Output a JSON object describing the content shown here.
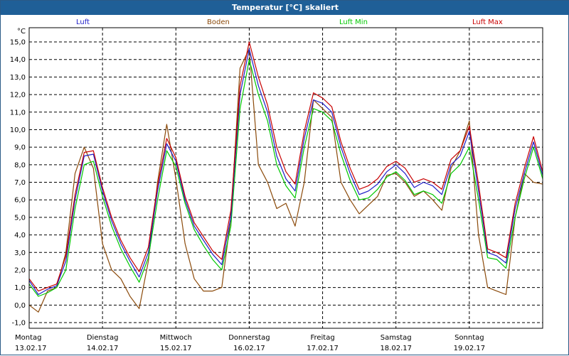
{
  "title": "Temperatur [°C] skaliert",
  "legend": [
    {
      "name": "Luft",
      "color": "#1e1ec8"
    },
    {
      "name": "Boden",
      "color": "#8b4a0a"
    },
    {
      "name": "Luft Min",
      "color": "#00c800"
    },
    {
      "name": "Luft Max",
      "color": "#c80000"
    }
  ],
  "chart_data": {
    "type": "line",
    "title": "Temperatur [°C] skaliert",
    "ylabel": "°C",
    "ylim": [
      -1.0,
      15.0
    ],
    "yticks": [
      "-1,0",
      "0,0",
      "1,0",
      "2,0",
      "3,0",
      "4,0",
      "5,0",
      "6,0",
      "7,0",
      "8,0",
      "9,0",
      "10,0",
      "11,0",
      "12,0",
      "13,0",
      "14,0",
      "15,0"
    ],
    "grid": true,
    "days": [
      {
        "name": "Montag",
        "date": "13.02.17"
      },
      {
        "name": "Dienstag",
        "date": "14.02.17"
      },
      {
        "name": "Mittwoch",
        "date": "15.02.17"
      },
      {
        "name": "Donnerstag",
        "date": "16.02.17"
      },
      {
        "name": "Freitag",
        "date": "17.02.17"
      },
      {
        "name": "Samstag",
        "date": "18.02.17"
      },
      {
        "name": "Sonntag",
        "date": "19.02.17"
      }
    ],
    "x": [
      0,
      3,
      6,
      9,
      12,
      15,
      18,
      21,
      24,
      27,
      30,
      33,
      36,
      39,
      42,
      45,
      48,
      51,
      54,
      57,
      60,
      63,
      66,
      69,
      72,
      75,
      78,
      81,
      84,
      87,
      90,
      93,
      96,
      99,
      102,
      105,
      108,
      111,
      114,
      117,
      120,
      123,
      126,
      129,
      132,
      135,
      138,
      141,
      144,
      147,
      150,
      153,
      156,
      159,
      162,
      165,
      168
    ],
    "series": [
      {
        "name": "Luft",
        "color": "#1e1ec8",
        "values": [
          1.4,
          0.6,
          0.9,
          1.1,
          2.5,
          6.0,
          8.5,
          8.6,
          6.5,
          4.8,
          3.5,
          2.5,
          1.6,
          3.0,
          6.5,
          9.2,
          8.2,
          6.0,
          4.5,
          3.7,
          2.9,
          2.3,
          5.0,
          12.0,
          14.6,
          12.5,
          11.0,
          8.5,
          7.2,
          6.5,
          9.5,
          11.7,
          11.5,
          11.0,
          9.0,
          7.5,
          6.3,
          6.5,
          6.9,
          7.6,
          8.0,
          7.5,
          6.7,
          7.0,
          6.8,
          6.3,
          8.0,
          8.5,
          9.9,
          6.5,
          3.0,
          2.8,
          2.4,
          5.5,
          7.5,
          9.3,
          7.4
        ]
      },
      {
        "name": "Boden",
        "color": "#8b4a0a",
        "values": [
          0.0,
          -0.4,
          0.8,
          1.0,
          3.0,
          7.5,
          9.0,
          7.8,
          3.5,
          2.0,
          1.5,
          0.5,
          -0.2,
          2.5,
          7.0,
          10.3,
          7.2,
          3.5,
          1.5,
          0.8,
          0.8,
          1.0,
          5.0,
          13.5,
          14.6,
          8.0,
          7.0,
          5.5,
          5.8,
          4.5,
          7.0,
          11.7,
          11.2,
          10.7,
          7.0,
          6.0,
          5.2,
          5.7,
          6.2,
          7.4,
          7.5,
          7.0,
          6.2,
          6.5,
          6.0,
          5.4,
          7.8,
          8.8,
          10.5,
          4.0,
          1.0,
          0.8,
          0.6,
          5.0,
          7.5,
          7.0,
          6.9
        ]
      },
      {
        "name": "Luft Min",
        "color": "#00c800",
        "values": [
          1.2,
          0.5,
          0.7,
          1.0,
          2.0,
          5.5,
          8.0,
          8.2,
          6.2,
          4.5,
          3.2,
          2.2,
          1.3,
          2.7,
          6.0,
          8.8,
          7.9,
          5.8,
          4.3,
          3.4,
          2.6,
          2.0,
          4.5,
          11.2,
          14.0,
          12.0,
          10.5,
          8.0,
          6.8,
          6.1,
          9.0,
          11.2,
          11.0,
          10.5,
          8.6,
          7.1,
          6.0,
          6.1,
          6.6,
          7.3,
          7.6,
          7.1,
          6.3,
          6.5,
          6.3,
          5.8,
          7.5,
          8.0,
          9.0,
          6.0,
          2.7,
          2.6,
          2.1,
          5.0,
          7.2,
          9.0,
          7.2
        ]
      },
      {
        "name": "Luft Max",
        "color": "#c80000",
        "values": [
          1.5,
          0.8,
          1.0,
          1.2,
          2.8,
          6.3,
          8.7,
          8.8,
          6.7,
          5.0,
          3.7,
          2.7,
          1.9,
          3.3,
          6.8,
          9.5,
          8.4,
          6.2,
          4.7,
          3.9,
          3.1,
          2.6,
          5.4,
          12.5,
          15.0,
          13.0,
          11.4,
          9.0,
          7.6,
          6.9,
          9.9,
          12.1,
          11.8,
          11.3,
          9.3,
          7.8,
          6.6,
          6.8,
          7.2,
          7.9,
          8.2,
          7.8,
          7.0,
          7.2,
          7.0,
          6.6,
          8.3,
          8.8,
          10.2,
          6.9,
          3.2,
          3.0,
          2.7,
          5.8,
          7.8,
          9.6,
          7.6
        ]
      }
    ]
  }
}
